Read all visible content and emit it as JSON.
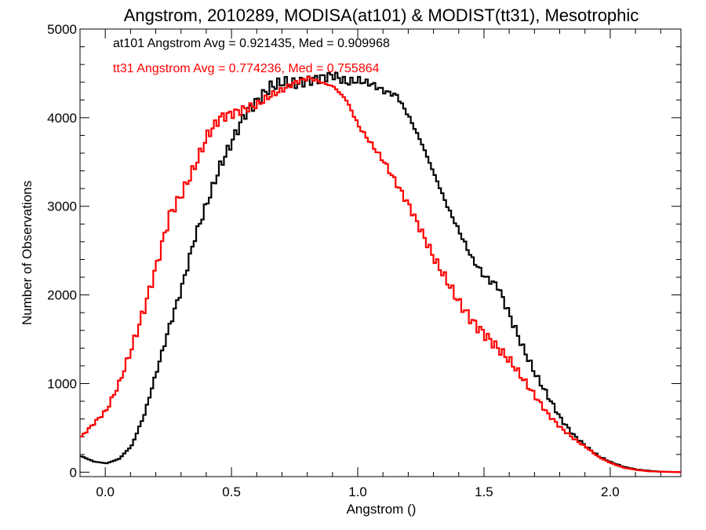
{
  "chart_data": {
    "type": "line",
    "title": "Angstrom, 2010289, MODISA(at101) & MODIST(tt31), Mesotrophic",
    "xlabel": "Angstrom ()",
    "ylabel": "Number of Observations",
    "xlim": [
      -0.1,
      2.28
    ],
    "ylim": [
      -50,
      5000
    ],
    "xticks": [
      "0.0",
      "0.5",
      "1.0",
      "1.5",
      "2.0"
    ],
    "yticks": [
      "0",
      "1000",
      "2000",
      "3000",
      "4000",
      "5000"
    ],
    "grid": false,
    "legend_position": "top-left",
    "annotations": [
      {
        "text": "at101 Angstrom Avg = 0.921435, Med = 0.909968",
        "color": "#000000"
      },
      {
        "text": "tt31 Angstrom Avg = 0.774236, Med = 0.755864",
        "color": "#ff0000"
      }
    ],
    "series": [
      {
        "color": "#000000",
        "x": [
          -0.1,
          -0.05,
          0.0,
          0.05,
          0.1,
          0.15,
          0.2,
          0.25,
          0.3,
          0.35,
          0.4,
          0.45,
          0.5,
          0.55,
          0.6,
          0.65,
          0.7,
          0.75,
          0.8,
          0.85,
          0.9,
          0.95,
          1.0,
          1.05,
          1.1,
          1.15,
          1.2,
          1.25,
          1.3,
          1.35,
          1.4,
          1.45,
          1.5,
          1.55,
          1.6,
          1.65,
          1.7,
          1.75,
          1.8,
          1.85,
          1.9,
          1.95,
          2.0,
          2.05,
          2.1,
          2.15,
          2.2,
          2.28
        ],
        "values": [
          180,
          120,
          100,
          150,
          300,
          650,
          1150,
          1650,
          2100,
          2650,
          3050,
          3450,
          3750,
          4050,
          4200,
          4350,
          4400,
          4380,
          4420,
          4450,
          4480,
          4400,
          4420,
          4380,
          4300,
          4250,
          4000,
          3700,
          3350,
          3000,
          2700,
          2400,
          2200,
          2100,
          1750,
          1400,
          1100,
          850,
          600,
          420,
          290,
          180,
          110,
          60,
          30,
          15,
          5,
          0
        ]
      },
      {
        "color": "#ff0000",
        "x": [
          -0.1,
          -0.05,
          0.0,
          0.05,
          0.1,
          0.15,
          0.2,
          0.25,
          0.3,
          0.35,
          0.4,
          0.45,
          0.5,
          0.55,
          0.6,
          0.65,
          0.7,
          0.75,
          0.8,
          0.85,
          0.9,
          0.95,
          1.0,
          1.05,
          1.1,
          1.15,
          1.2,
          1.25,
          1.3,
          1.35,
          1.4,
          1.45,
          1.5,
          1.55,
          1.6,
          1.65,
          1.7,
          1.75,
          1.8,
          1.85,
          1.9,
          1.95,
          2.0,
          2.05,
          2.1,
          2.15,
          2.2,
          2.28
        ],
        "values": [
          400,
          550,
          700,
          1000,
          1400,
          1850,
          2350,
          2900,
          3150,
          3450,
          3800,
          4000,
          4050,
          4100,
          4150,
          4250,
          4320,
          4400,
          4450,
          4400,
          4350,
          4200,
          3900,
          3700,
          3500,
          3250,
          3000,
          2700,
          2400,
          2150,
          1900,
          1700,
          1550,
          1400,
          1250,
          1050,
          850,
          650,
          500,
          380,
          280,
          170,
          100,
          50,
          25,
          10,
          5,
          0
        ]
      }
    ]
  }
}
